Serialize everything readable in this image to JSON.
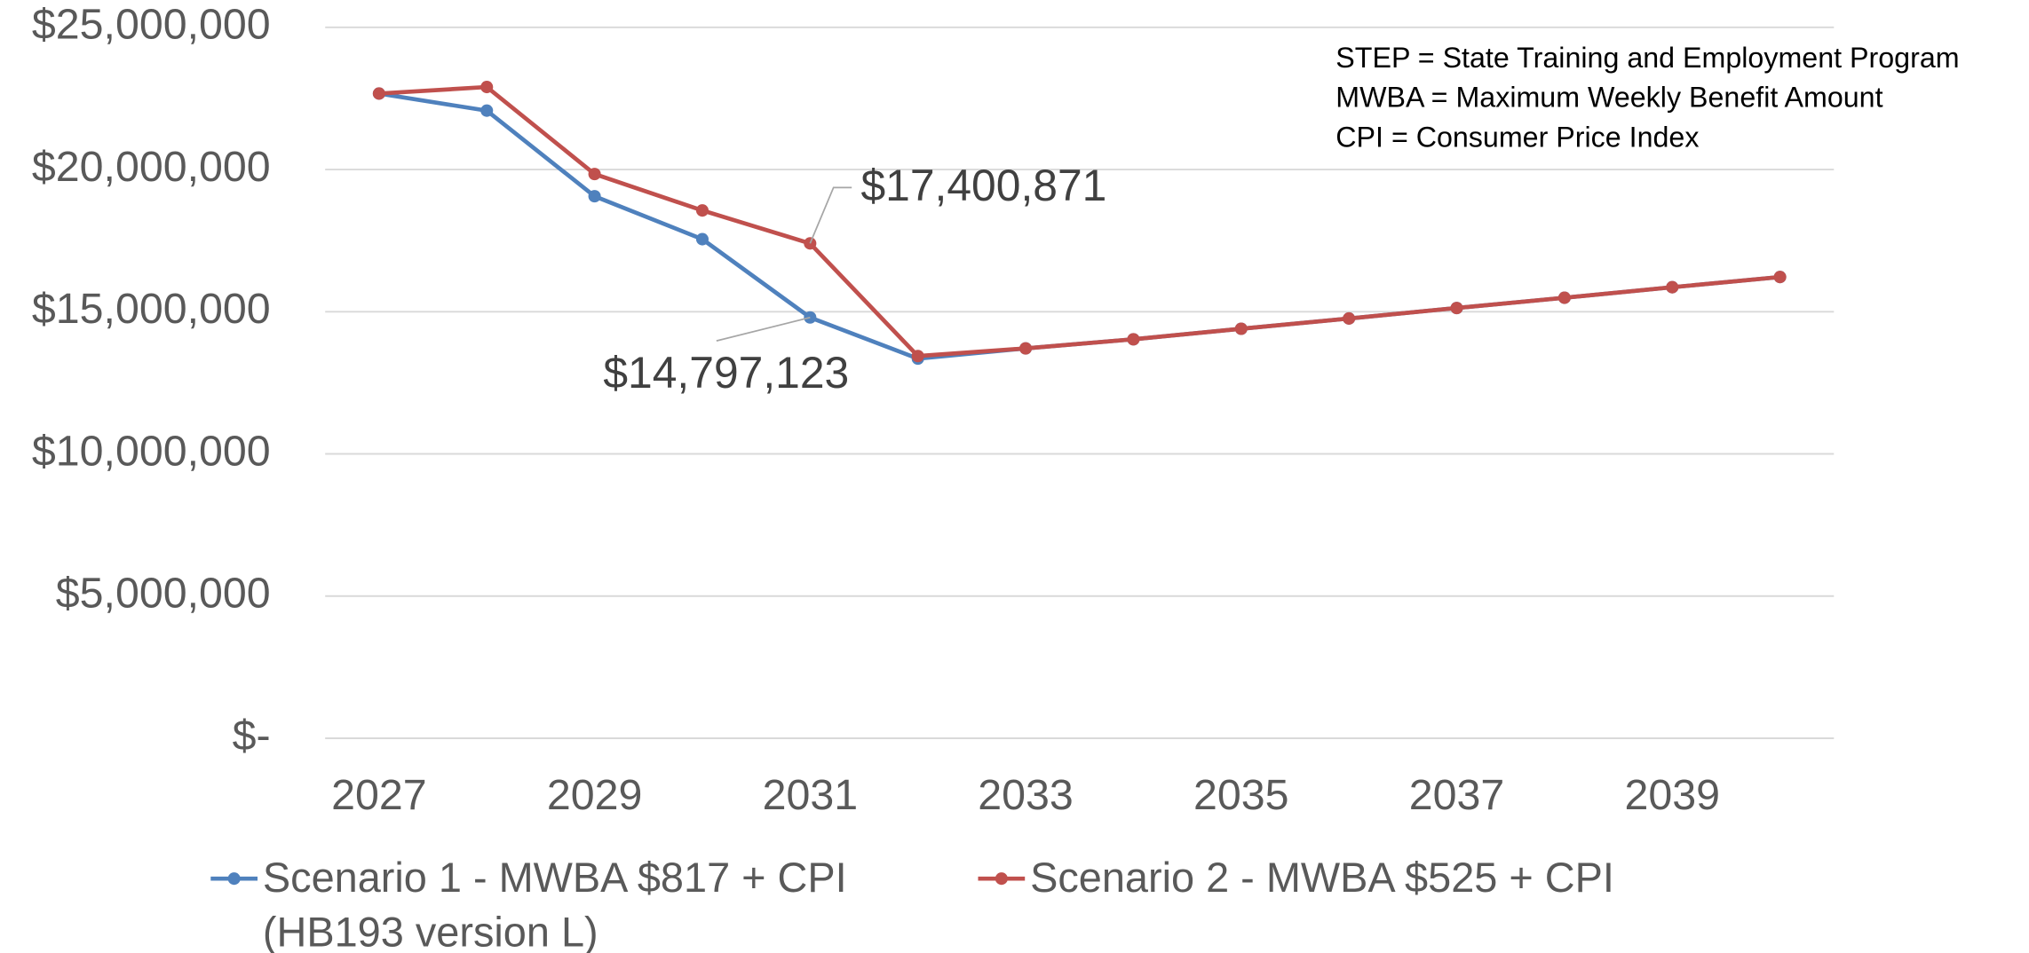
{
  "chart_data": {
    "type": "line",
    "categories": [
      "2027",
      null,
      "2029",
      null,
      "2031",
      null,
      "2033",
      null,
      "2035",
      null,
      "2037",
      null,
      "2039",
      null
    ],
    "series": [
      {
        "name": "Scenario 1 - MWBA $817 + CPI (HB193 version L)",
        "color": "#4f81bd",
        "values": [
          22670000,
          22070000,
          19060000,
          17550000,
          14797123,
          13350000,
          13710000,
          14030000,
          14400000,
          14760000,
          15130000,
          15490000,
          15860000,
          16220000
        ],
        "value_labels": [
          null,
          null,
          null,
          null,
          "$14,797,123",
          null,
          null,
          null,
          null,
          null,
          null,
          null,
          null,
          null
        ]
      },
      {
        "name": "Scenario 2 - MWBA $525 + CPI",
        "color": "#c0504d",
        "values": [
          22670000,
          22900000,
          19840000,
          18560000,
          17400871,
          13440000,
          13710000,
          14030000,
          14400000,
          14760000,
          15130000,
          15490000,
          15860000,
          16220000
        ],
        "value_labels": [
          null,
          null,
          null,
          null,
          "$17,400,871",
          null,
          null,
          null,
          null,
          null,
          null,
          null,
          null,
          null
        ]
      }
    ],
    "ylim": [
      0,
      25000000
    ],
    "yticks": [
      {
        "value": 0,
        "label": "$-"
      },
      {
        "value": 5000000,
        "label": "$5,000,000"
      },
      {
        "value": 10000000,
        "label": "$10,000,000"
      },
      {
        "value": 15000000,
        "label": "$15,000,000"
      },
      {
        "value": 20000000,
        "label": "$20,000,000"
      },
      {
        "value": 25000000,
        "label": "$25,000,000"
      }
    ],
    "grid": true,
    "notes": [
      "STEP = State Training and Employment Program",
      "MWBA = Maximum Weekly Benefit Amount",
      "CPI = Consumer Price Index"
    ]
  }
}
